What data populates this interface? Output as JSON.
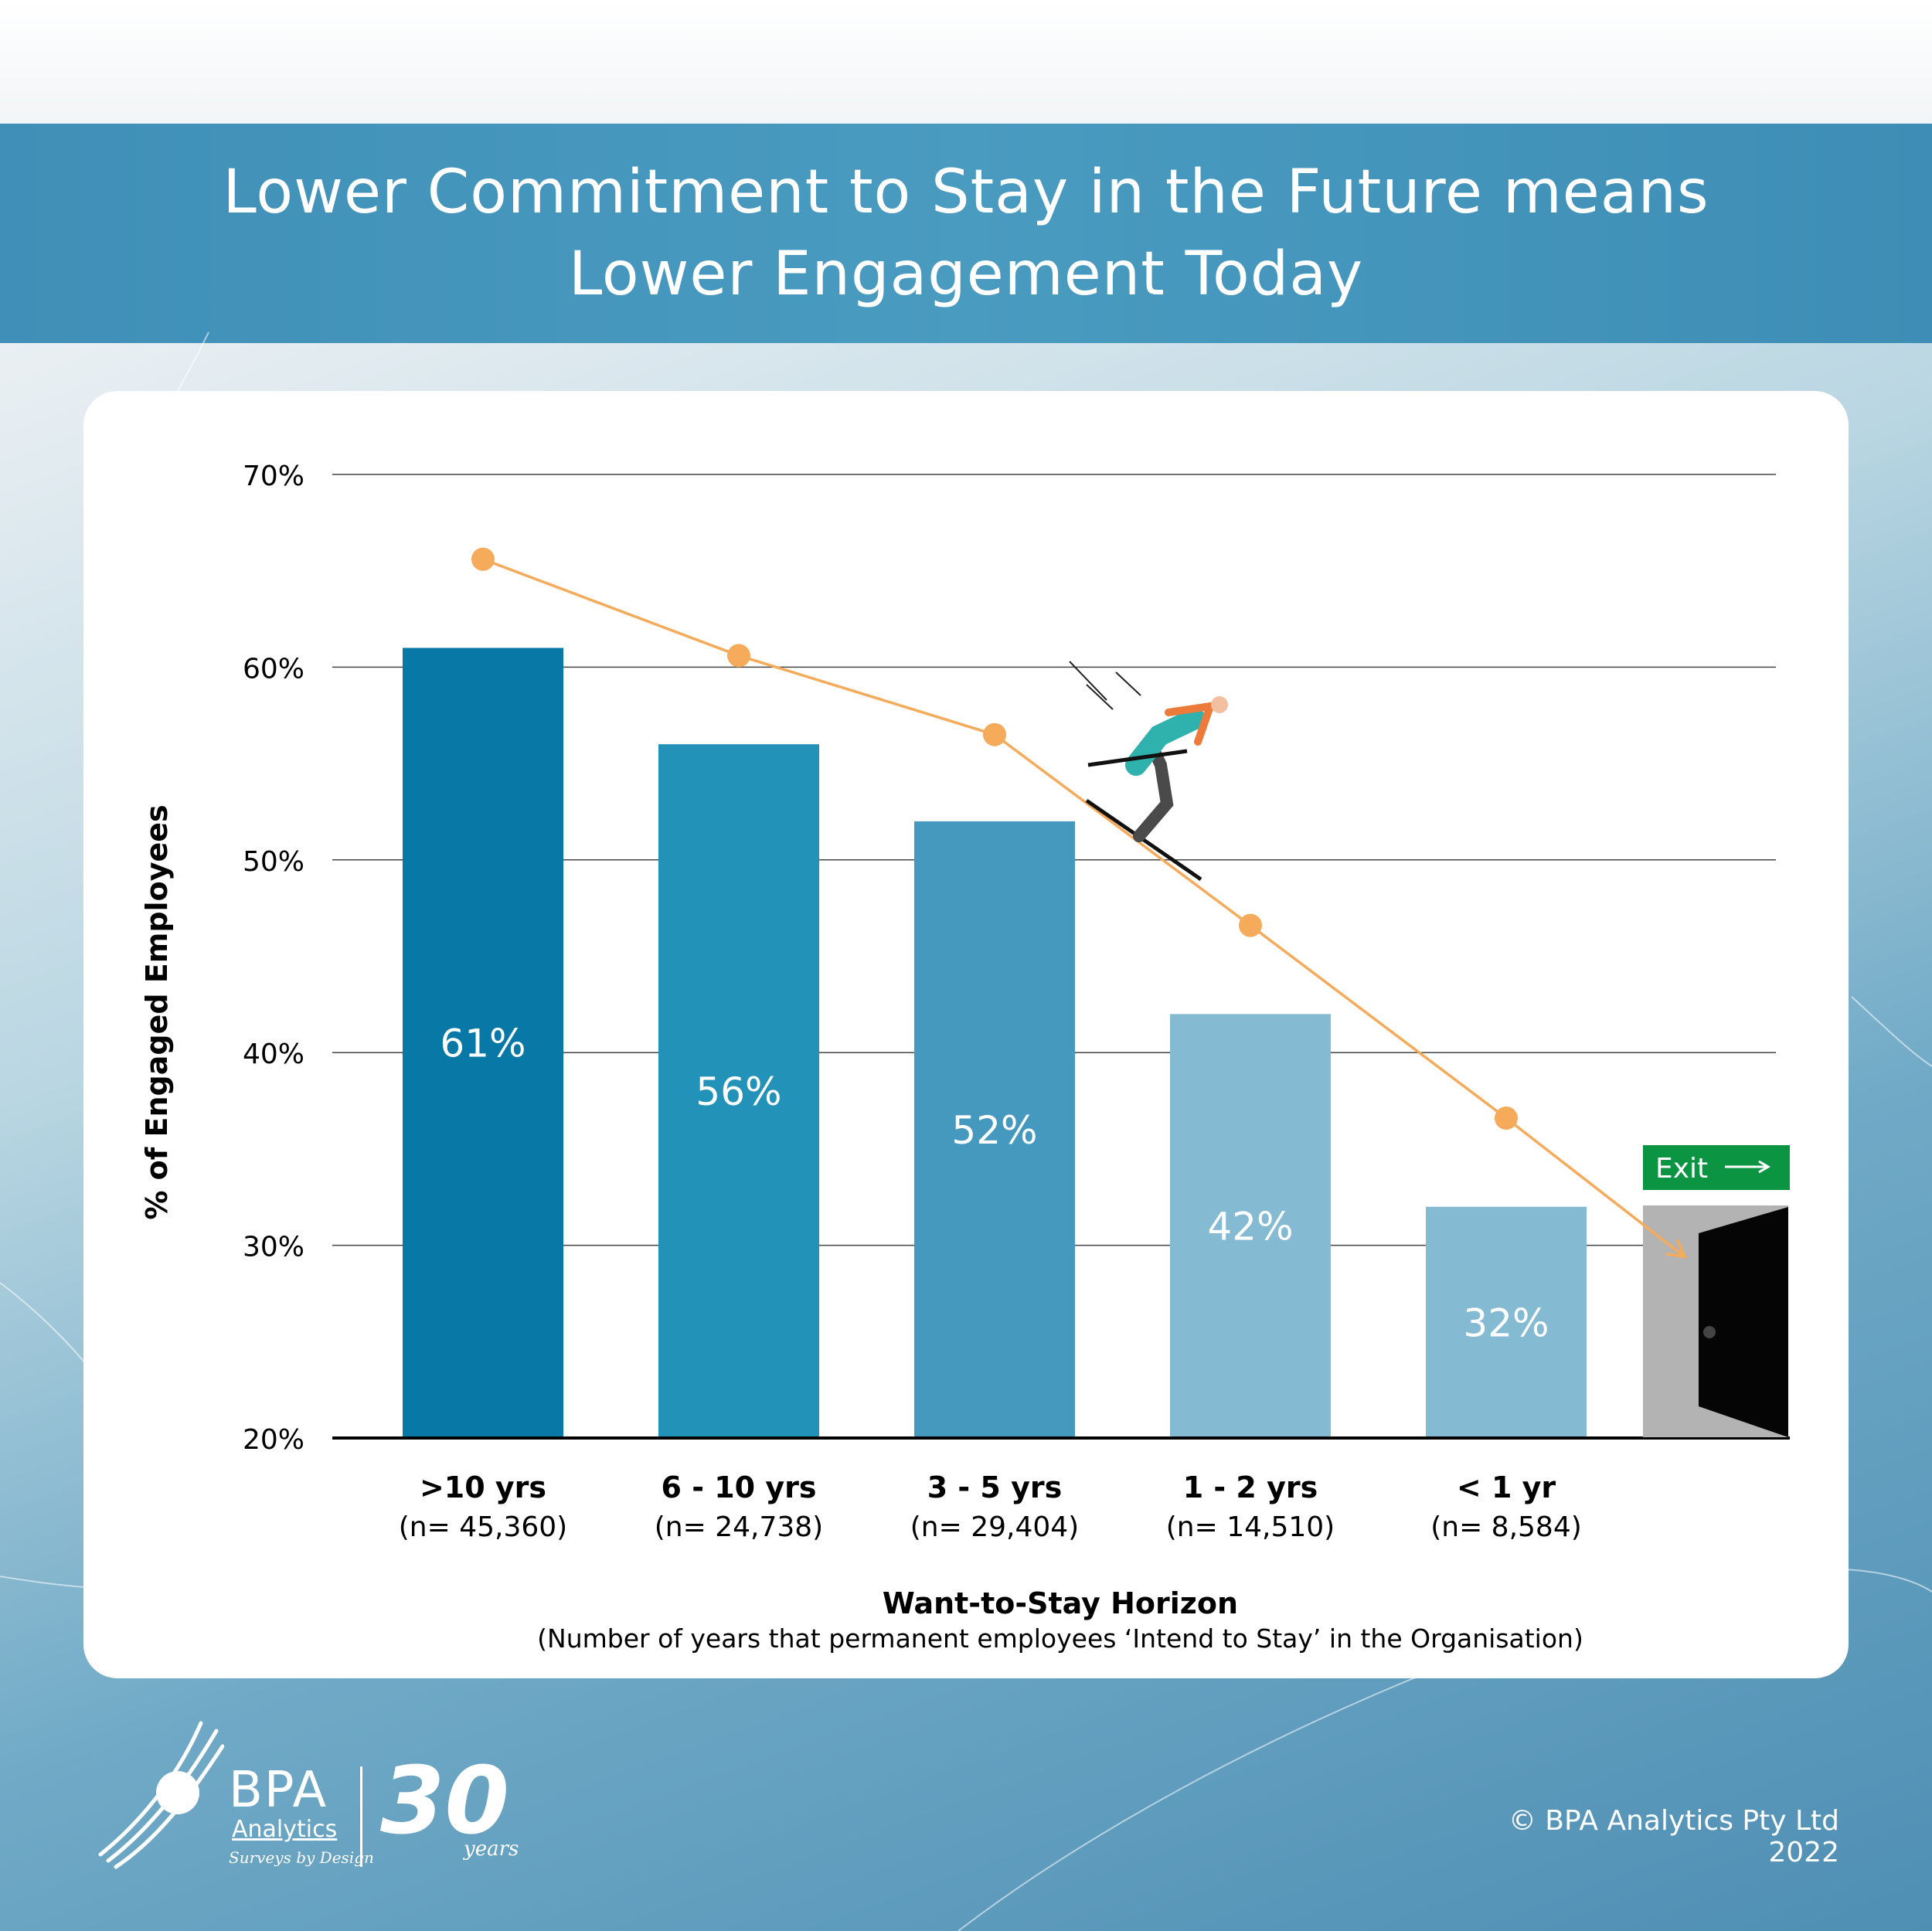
{
  "title_line1": "Lower Commitment to Stay in the Future means",
  "title_line2": "Lower Engagement Today",
  "copyright": "© BPA Analytics Pty Ltd 2022",
  "logo": {
    "name": "BPA",
    "sub": "Analytics",
    "tagline": "Surveys by Design",
    "anniversary_number": "30",
    "anniversary_word": "years"
  },
  "exit_sign": "Exit",
  "chart_data": {
    "type": "bar",
    "xlabel": "Want-to-Stay Horizon",
    "xlabel_sub": "(Number of years that permanent employees ‘Intend to Stay’ in the Organisation)",
    "ylabel": "% of Engaged Employees",
    "ylim": [
      20,
      70
    ],
    "yticks": [
      20,
      30,
      40,
      50,
      60,
      70
    ],
    "ytick_labels": [
      "20%",
      "30%",
      "40%",
      "50%",
      "60%",
      "70%"
    ],
    "grid": true,
    "categories": [
      ">10 yrs",
      "6 - 10 yrs",
      "3 - 5 yrs",
      "1 - 2 yrs",
      "< 1 yr"
    ],
    "sample_sizes": [
      "(n= 45,360)",
      "(n= 24,738)",
      "(n= 29,404)",
      "(n= 14,510)",
      "(n= 8,584)"
    ],
    "values": [
      61,
      56,
      52,
      42,
      32
    ],
    "value_labels": [
      "61%",
      "56%",
      "52%",
      "42%",
      "32%"
    ],
    "bar_colors": [
      "#0878a6",
      "#2392b8",
      "#4599be",
      "#85bad3",
      "#85bad3"
    ],
    "trend_line": {
      "color": "#f5ab5a",
      "values": [
        65.6,
        60.6,
        56.5,
        46.6,
        36.6
      ],
      "end_value": 29.4
    }
  }
}
